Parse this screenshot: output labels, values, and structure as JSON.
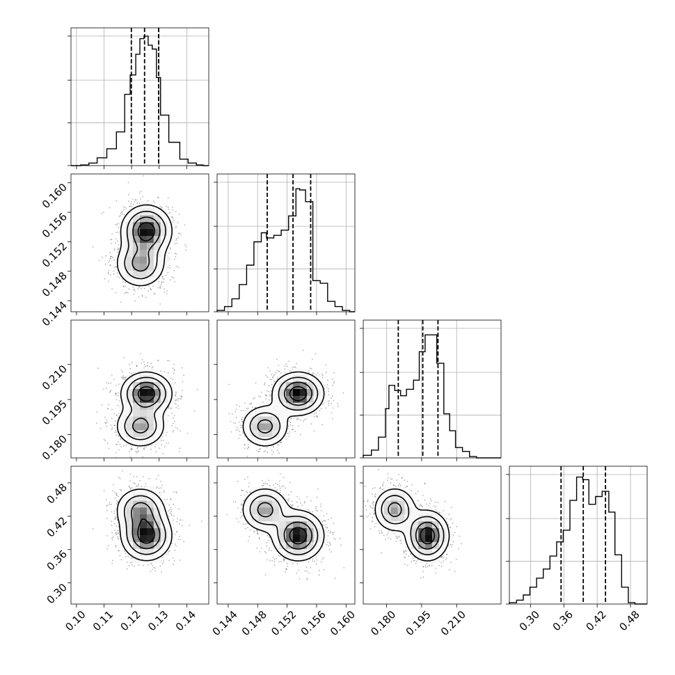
{
  "chart_data": {
    "type": "corner",
    "parameters": [
      {
        "range": [
          0.098,
          0.148
        ],
        "ticks": [
          0.1,
          0.11,
          0.12,
          0.13,
          0.14
        ],
        "tick_labels": [
          "0.10",
          "0.11",
          "0.12",
          "0.13",
          "0.14"
        ],
        "quantiles": [
          0.1199,
          0.1247,
          0.1298
        ]
      },
      {
        "range": [
          0.1425,
          0.1612
        ],
        "ticks": [
          0.144,
          0.148,
          0.152,
          0.156,
          0.16
        ],
        "tick_labels": [
          "0.144",
          "0.148",
          "0.152",
          "0.156",
          "0.160"
        ],
        "quantiles": [
          0.1493,
          0.1528,
          0.1552
        ]
      },
      {
        "range": [
          0.17,
          0.229
        ],
        "ticks": [
          0.18,
          0.195,
          0.21
        ],
        "tick_labels": [
          "0.180",
          "0.195",
          "0.210"
        ],
        "quantiles": [
          0.185,
          0.1955,
          0.202
        ]
      },
      {
        "range": [
          0.262,
          0.51
        ],
        "ticks": [
          0.3,
          0.36,
          0.42,
          0.48
        ],
        "tick_labels": [
          "0.30",
          "0.36",
          "0.42",
          "0.48"
        ],
        "quantiles": [
          0.355,
          0.395,
          0.435
        ]
      }
    ],
    "marginal_histograms": [
      {
        "bin_edges": [
          0.098,
          0.1015,
          0.1045,
          0.1075,
          0.111,
          0.1145,
          0.1175,
          0.1195,
          0.1215,
          0.123,
          0.1245,
          0.126,
          0.1275,
          0.129,
          0.1305,
          0.1335,
          0.1375,
          0.1405,
          0.1435,
          0.146,
          0.148
        ],
        "counts": [
          0,
          0.005,
          0.02,
          0.06,
          0.13,
          0.26,
          0.55,
          0.7,
          0.86,
          0.98,
          1.0,
          0.93,
          0.9,
          0.68,
          0.39,
          0.18,
          0.05,
          0.02,
          0.005,
          0
        ]
      },
      {
        "bin_edges": [
          0.1425,
          0.1435,
          0.1445,
          0.1455,
          0.1465,
          0.1475,
          0.1485,
          0.1492,
          0.1502,
          0.1512,
          0.1522,
          0.1532,
          0.1537,
          0.1545,
          0.1555,
          0.1565,
          0.1575,
          0.1585,
          0.1595,
          0.1605,
          0.1612
        ],
        "counts": [
          0.01,
          0.04,
          0.1,
          0.21,
          0.36,
          0.54,
          0.61,
          0.57,
          0.59,
          0.63,
          0.74,
          0.95,
          0.94,
          0.85,
          0.24,
          0.22,
          0.08,
          0.04,
          0.01,
          0
        ]
      },
      {
        "bin_edges": [
          0.17,
          0.1735,
          0.1765,
          0.1795,
          0.181,
          0.1835,
          0.186,
          0.1885,
          0.1915,
          0.194,
          0.1965,
          0.1985,
          0.2015,
          0.2045,
          0.207,
          0.2095,
          0.2125,
          0.2155,
          0.2185,
          0.229
        ],
        "counts": [
          0.02,
          0.06,
          0.16,
          0.38,
          0.56,
          0.52,
          0.48,
          0.53,
          0.6,
          0.82,
          0.95,
          0.95,
          0.73,
          0.34,
          0.21,
          0.08,
          0.05,
          0.01,
          0
        ]
      },
      {
        "bin_edges": [
          0.262,
          0.275,
          0.287,
          0.299,
          0.311,
          0.323,
          0.335,
          0.347,
          0.359,
          0.371,
          0.383,
          0.394,
          0.405,
          0.417,
          0.429,
          0.441,
          0.452,
          0.464,
          0.476,
          0.488,
          0.51
        ],
        "counts": [
          0.01,
          0.03,
          0.07,
          0.13,
          0.2,
          0.27,
          0.37,
          0.48,
          0.57,
          0.8,
          0.98,
          0.96,
          0.77,
          0.83,
          0.87,
          0.71,
          0.38,
          0.13,
          0.01,
          0
        ]
      }
    ],
    "joint_components": [
      {
        "weight": 0.6,
        "means": [
          0.1254,
          0.1535,
          0.1975,
          0.385
        ],
        "sds": [
          0.0045,
          0.0017,
          0.0045,
          0.022
        ]
      },
      {
        "weight": 0.4,
        "means": [
          0.1232,
          0.149,
          0.1835,
          0.432
        ],
        "sds": [
          0.0045,
          0.0016,
          0.0045,
          0.02
        ]
      }
    ],
    "contour_levels": [
      0.12,
      0.3,
      0.55,
      0.8
    ],
    "colors": {
      "line": "#000000",
      "grid": "#b0b0b0",
      "background": "#ffffff"
    },
    "grid": true,
    "y_tick_labels_rotated": true,
    "x_tick_labels_rotated": true
  }
}
